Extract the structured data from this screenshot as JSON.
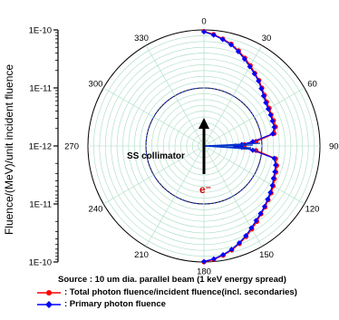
{
  "chart_data": {
    "type": "polar-line",
    "ylabel": "Fluence/(MeV)/unit incident fluence",
    "radial_axis": {
      "scale": "log",
      "ticks": [
        "1E-10",
        "1E-11",
        "1E-12",
        "1E-11",
        "1E-10"
      ],
      "min": 1e-12,
      "max": 1e-10
    },
    "angle_ticks": [
      "0",
      "30",
      "60",
      "90",
      "120",
      "150",
      "180",
      "210",
      "240",
      "270",
      "300",
      "330"
    ],
    "grid": true,
    "annotations": [
      "SS collimator",
      "e⁻"
    ],
    "source_note": "Source : 10 um dia. parallel beam (1 keV energy spread)",
    "legend_position": "bottom",
    "series": [
      {
        "name": ": Total photon fluence/incident fluence(incl. secondaries)",
        "color": "#ff0000",
        "marker": "circle",
        "points": [
          {
            "angle": 0,
            "value": 9.5e-11
          },
          {
            "angle": 5,
            "value": 8.5e-11
          },
          {
            "angle": 10,
            "value": 7.5e-11
          },
          {
            "angle": 15,
            "value": 6.6e-11
          },
          {
            "angle": 20,
            "value": 5.6e-11
          },
          {
            "angle": 25,
            "value": 4.7e-11
          },
          {
            "angle": 30,
            "value": 4e-11
          },
          {
            "angle": 35,
            "value": 3.4e-11
          },
          {
            "angle": 40,
            "value": 3e-11
          },
          {
            "angle": 45,
            "value": 2.6e-11
          },
          {
            "angle": 50,
            "value": 2.3e-11
          },
          {
            "angle": 55,
            "value": 2.1e-11
          },
          {
            "angle": 60,
            "value": 2e-11
          },
          {
            "angle": 65,
            "value": 1.9e-11
          },
          {
            "angle": 70,
            "value": 1.9e-11
          },
          {
            "angle": 75,
            "value": 1.9e-11
          },
          {
            "angle": 80,
            "value": 1.7e-11
          },
          {
            "angle": 85,
            "value": 8e-12
          },
          {
            "angle": 88,
            "value": 5e-12
          },
          {
            "angle": 90,
            "value": 4e-12
          },
          {
            "angle": 92,
            "value": 5e-12
          },
          {
            "angle": 95,
            "value": 8e-12
          },
          {
            "angle": 100,
            "value": 1.8e-11
          },
          {
            "angle": 105,
            "value": 2e-11
          },
          {
            "angle": 110,
            "value": 2.1e-11
          },
          {
            "angle": 115,
            "value": 2.2e-11
          },
          {
            "angle": 120,
            "value": 2.4e-11
          },
          {
            "angle": 125,
            "value": 2.6e-11
          },
          {
            "angle": 130,
            "value": 2.8e-11
          },
          {
            "angle": 135,
            "value": 3.1e-11
          },
          {
            "angle": 140,
            "value": 3.4e-11
          },
          {
            "angle": 145,
            "value": 3.9e-11
          },
          {
            "angle": 150,
            "value": 4.5e-11
          },
          {
            "angle": 155,
            "value": 5.3e-11
          },
          {
            "angle": 160,
            "value": 6.2e-11
          },
          {
            "angle": 165,
            "value": 7.2e-11
          },
          {
            "angle": 170,
            "value": 8.2e-11
          },
          {
            "angle": 175,
            "value": 9.2e-11
          },
          {
            "angle": 180,
            "value": 1e-10
          }
        ]
      },
      {
        "name": ": Primary photon fluence",
        "color": "#0000ff",
        "marker": "diamond",
        "points": [
          {
            "angle": 0,
            "value": 9.3e-11
          },
          {
            "angle": 5,
            "value": 8.3e-11
          },
          {
            "angle": 10,
            "value": 7.3e-11
          },
          {
            "angle": 15,
            "value": 6.4e-11
          },
          {
            "angle": 20,
            "value": 5.4e-11
          },
          {
            "angle": 25,
            "value": 4.5e-11
          },
          {
            "angle": 30,
            "value": 3.8e-11
          },
          {
            "angle": 35,
            "value": 3.3e-11
          },
          {
            "angle": 40,
            "value": 2.9e-11
          },
          {
            "angle": 45,
            "value": 2.5e-11
          },
          {
            "angle": 50,
            "value": 2.2e-11
          },
          {
            "angle": 55,
            "value": 2e-11
          },
          {
            "angle": 60,
            "value": 1.9e-11
          },
          {
            "angle": 65,
            "value": 1.85e-11
          },
          {
            "angle": 70,
            "value": 1.8e-11
          },
          {
            "angle": 75,
            "value": 1.8e-11
          },
          {
            "angle": 80,
            "value": 1.6e-11
          },
          {
            "angle": 85,
            "value": 7e-12
          },
          {
            "angle": 88,
            "value": 4.5e-12
          },
          {
            "angle": 90,
            "value": 3.5e-12
          },
          {
            "angle": 92,
            "value": 4.5e-12
          },
          {
            "angle": 95,
            "value": 7e-12
          },
          {
            "angle": 100,
            "value": 1.7e-11
          },
          {
            "angle": 105,
            "value": 1.9e-11
          },
          {
            "angle": 110,
            "value": 2e-11
          },
          {
            "angle": 115,
            "value": 2.1e-11
          },
          {
            "angle": 120,
            "value": 2.3e-11
          },
          {
            "angle": 125,
            "value": 2.5e-11
          },
          {
            "angle": 130,
            "value": 2.7e-11
          },
          {
            "angle": 135,
            "value": 3e-11
          },
          {
            "angle": 140,
            "value": 3.3e-11
          },
          {
            "angle": 145,
            "value": 3.7e-11
          },
          {
            "angle": 150,
            "value": 4.3e-11
          },
          {
            "angle": 155,
            "value": 5.1e-11
          },
          {
            "angle": 160,
            "value": 6e-11
          },
          {
            "angle": 165,
            "value": 7e-11
          },
          {
            "angle": 170,
            "value": 8e-11
          },
          {
            "angle": 175,
            "value": 9e-11
          },
          {
            "angle": 180,
            "value": 9.8e-11
          }
        ]
      }
    ]
  }
}
